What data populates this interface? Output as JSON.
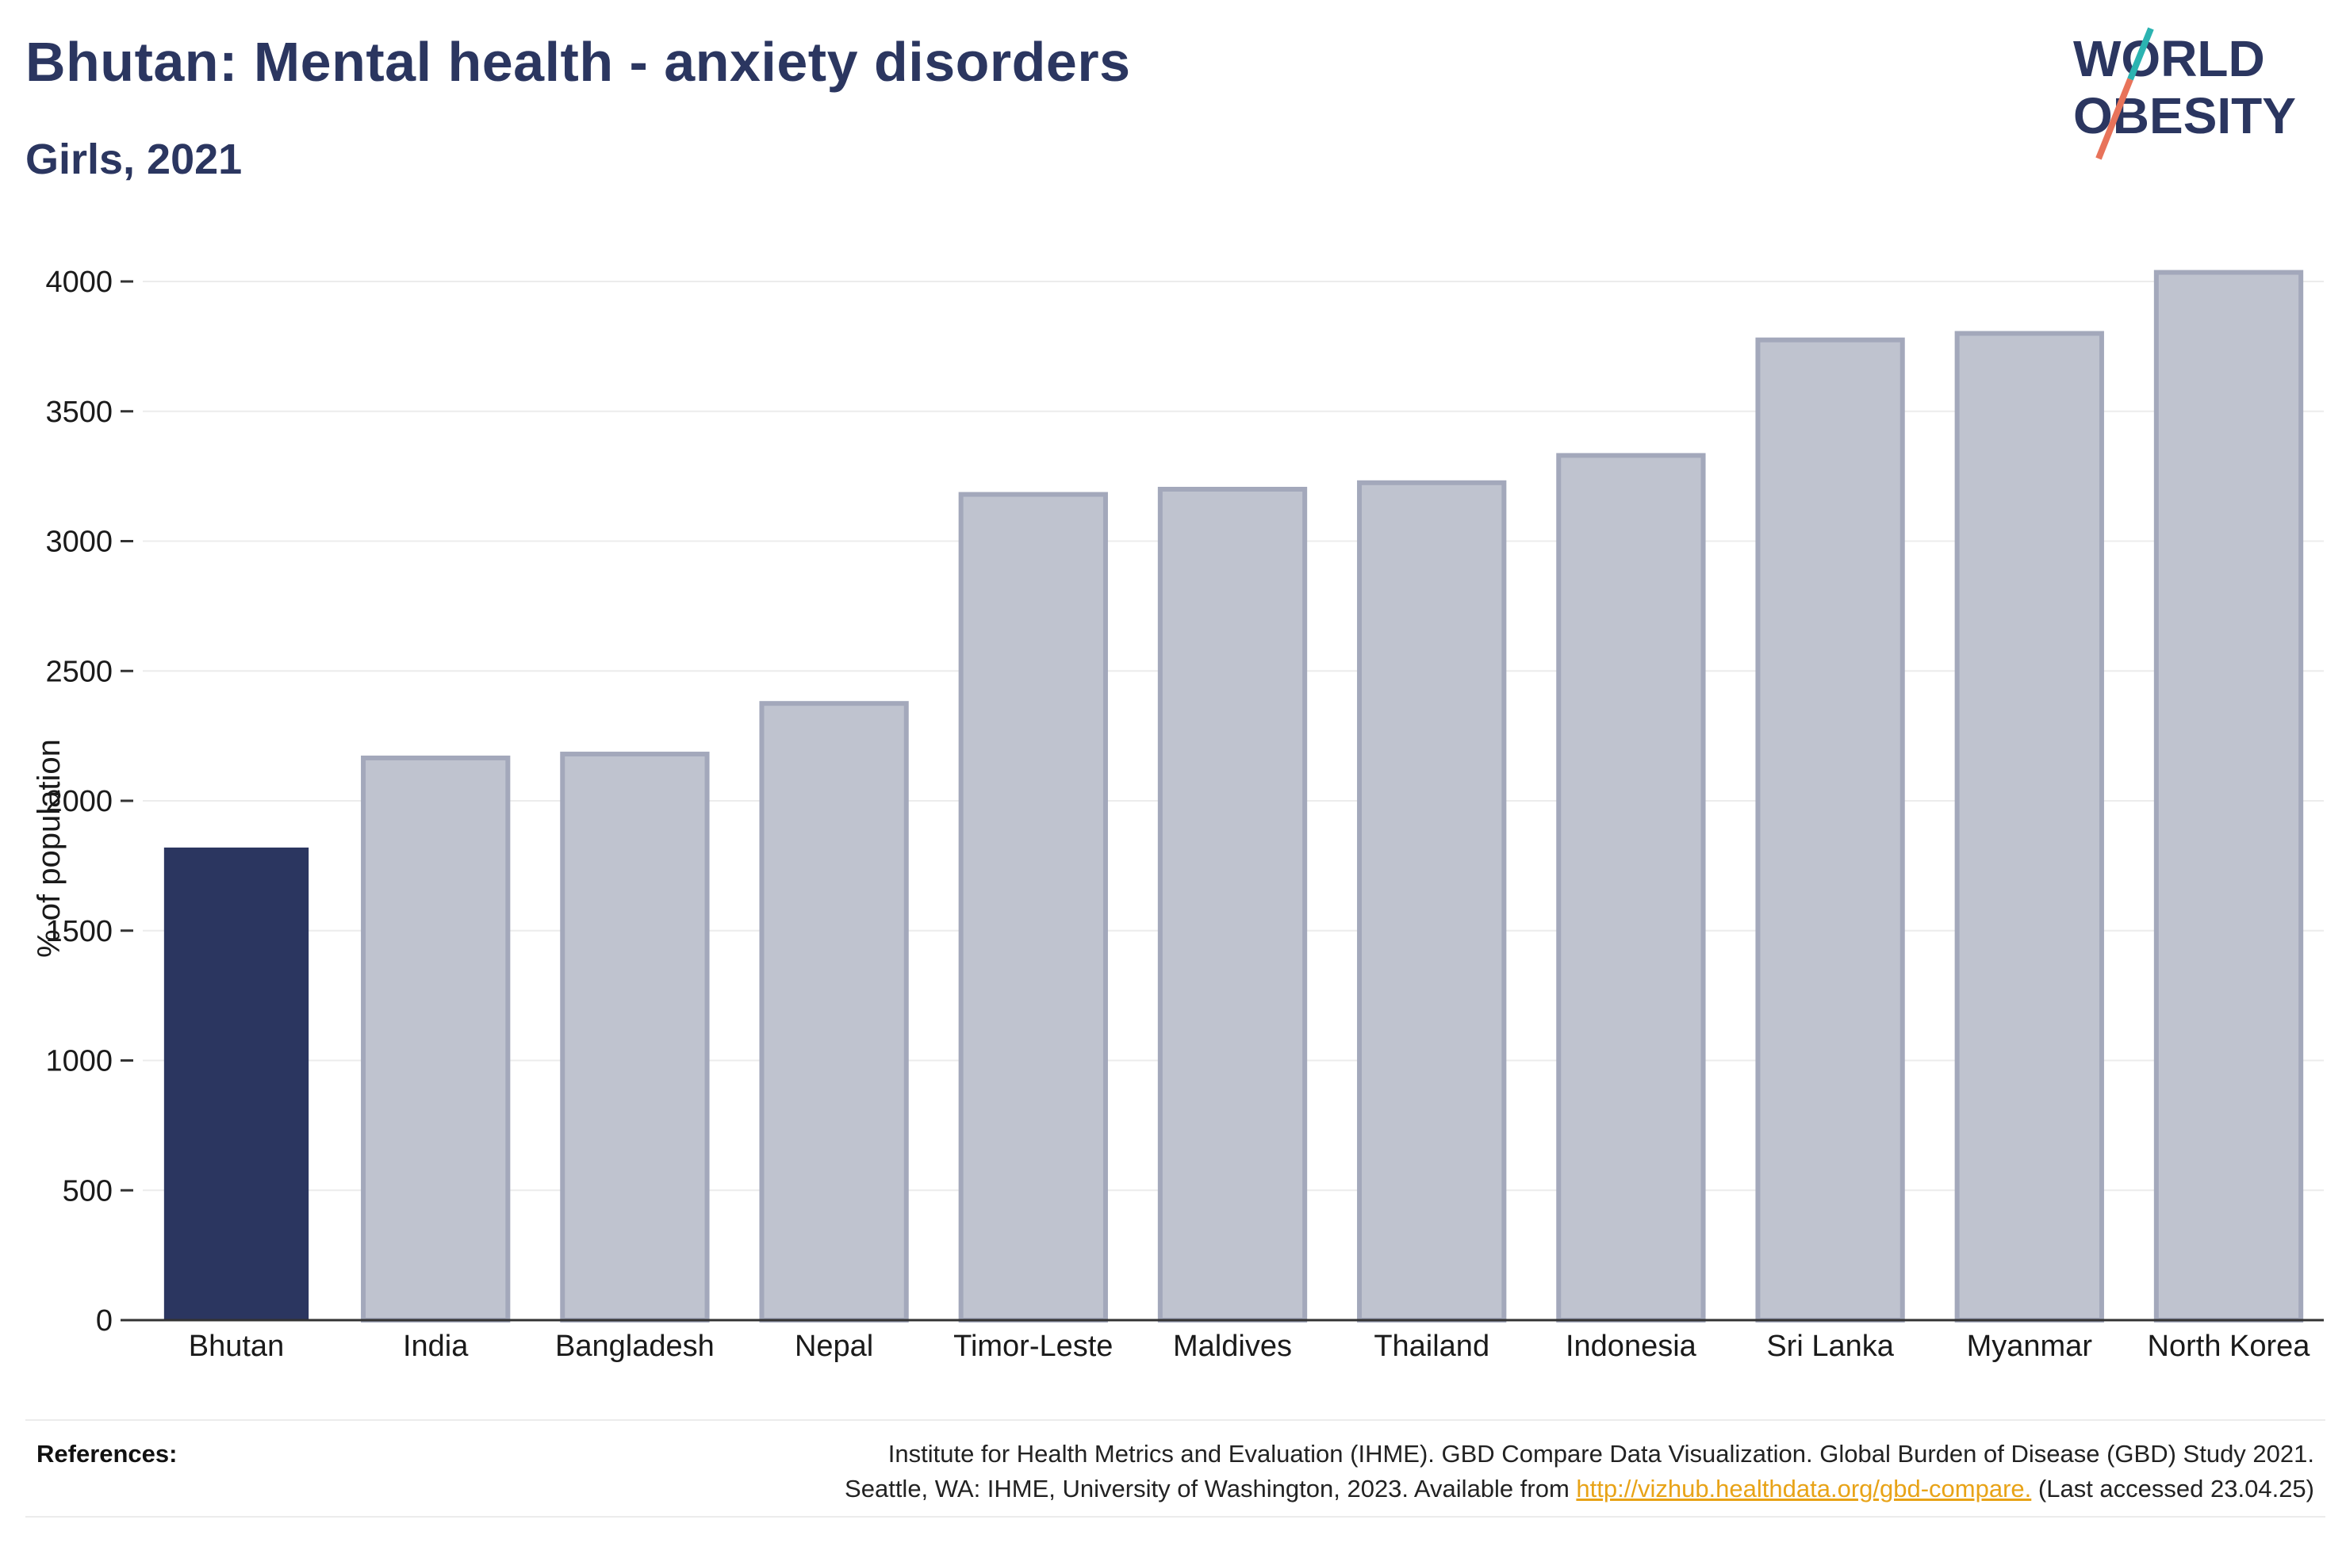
{
  "title": "Bhutan: Mental health - anxiety disorders",
  "subtitle": "Girls, 2021",
  "logo": {
    "line1": "WORLD",
    "line2": "OBESITY",
    "accent_teal": "#2bb3b1",
    "accent_red": "#e8735a",
    "color": "#2b3660"
  },
  "chart_data": {
    "type": "bar",
    "categories": [
      "Bhutan",
      "India",
      "Bangladesh",
      "Nepal",
      "Timor-Leste",
      "Maldives",
      "Thailand",
      "Indonesia",
      "Sri Lanka",
      "Myanmar",
      "North Korea"
    ],
    "values": [
      1820,
      2165,
      2180,
      2375,
      3180,
      3200,
      3225,
      3330,
      3775,
      3800,
      4035
    ],
    "highlight": "Bhutan",
    "highlight_color": "#2b3660",
    "other_color": "#bfc3cf",
    "other_border_color": "#a3a8bb",
    "ylabel": "% of population",
    "xlabel": "",
    "ylim": [
      0,
      4000
    ],
    "yticks": [
      0,
      500,
      1000,
      1500,
      2000,
      2500,
      3000,
      3500,
      4000
    ],
    "grid": true
  },
  "references": {
    "label": "References:",
    "line1": "Institute for Health Metrics and Evaluation (IHME). GBD Compare Data Visualization. Global Burden of Disease (GBD) Study 2021.",
    "line2_prefix": "Seattle, WA: IHME, University of Washington, 2023. Available from ",
    "link": "http://vizhub.healthdata.org/gbd-compare.",
    "line2_suffix": " (Last accessed 23.04.25)"
  }
}
